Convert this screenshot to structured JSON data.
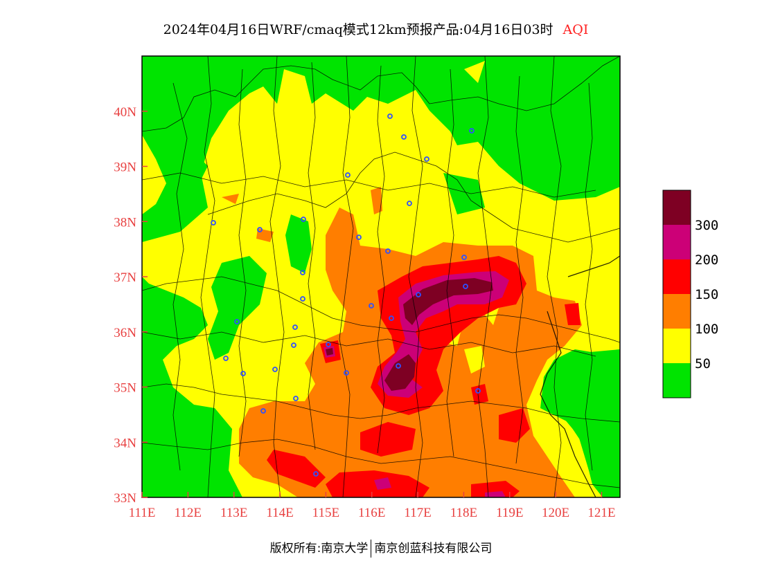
{
  "title": {
    "main": "2024年04月16日WRF/cmaq模式12km预报产品:04月16日03时",
    "product": "AQI"
  },
  "footer": {
    "left": "版权所有:南京大学",
    "right": "南京创蓝科技有限公司"
  },
  "map": {
    "lon_range": [
      111,
      121.4
    ],
    "lat_range": [
      33,
      41
    ],
    "lon_ticks": [
      "111E",
      "112E",
      "113E",
      "114E",
      "115E",
      "116E",
      "117E",
      "118E",
      "119E",
      "120E",
      "121E"
    ],
    "lat_ticks": [
      "33N",
      "34N",
      "35N",
      "36N",
      "37N",
      "38N",
      "39N",
      "40N"
    ],
    "tick_color": "#e84040"
  },
  "legend": {
    "labels": [
      "300",
      "200",
      "150",
      "100",
      "50"
    ],
    "classes": [
      {
        "range": "0-50",
        "color": "#00e400"
      },
      {
        "range": "50-100",
        "color": "#ffff00"
      },
      {
        "range": "100-150",
        "color": "#ff7e00"
      },
      {
        "range": "150-200",
        "color": "#ff0000"
      },
      {
        "range": "200-300",
        "color": "#cc0077"
      },
      {
        "range": ">300",
        "color": "#7e0023"
      }
    ]
  }
}
